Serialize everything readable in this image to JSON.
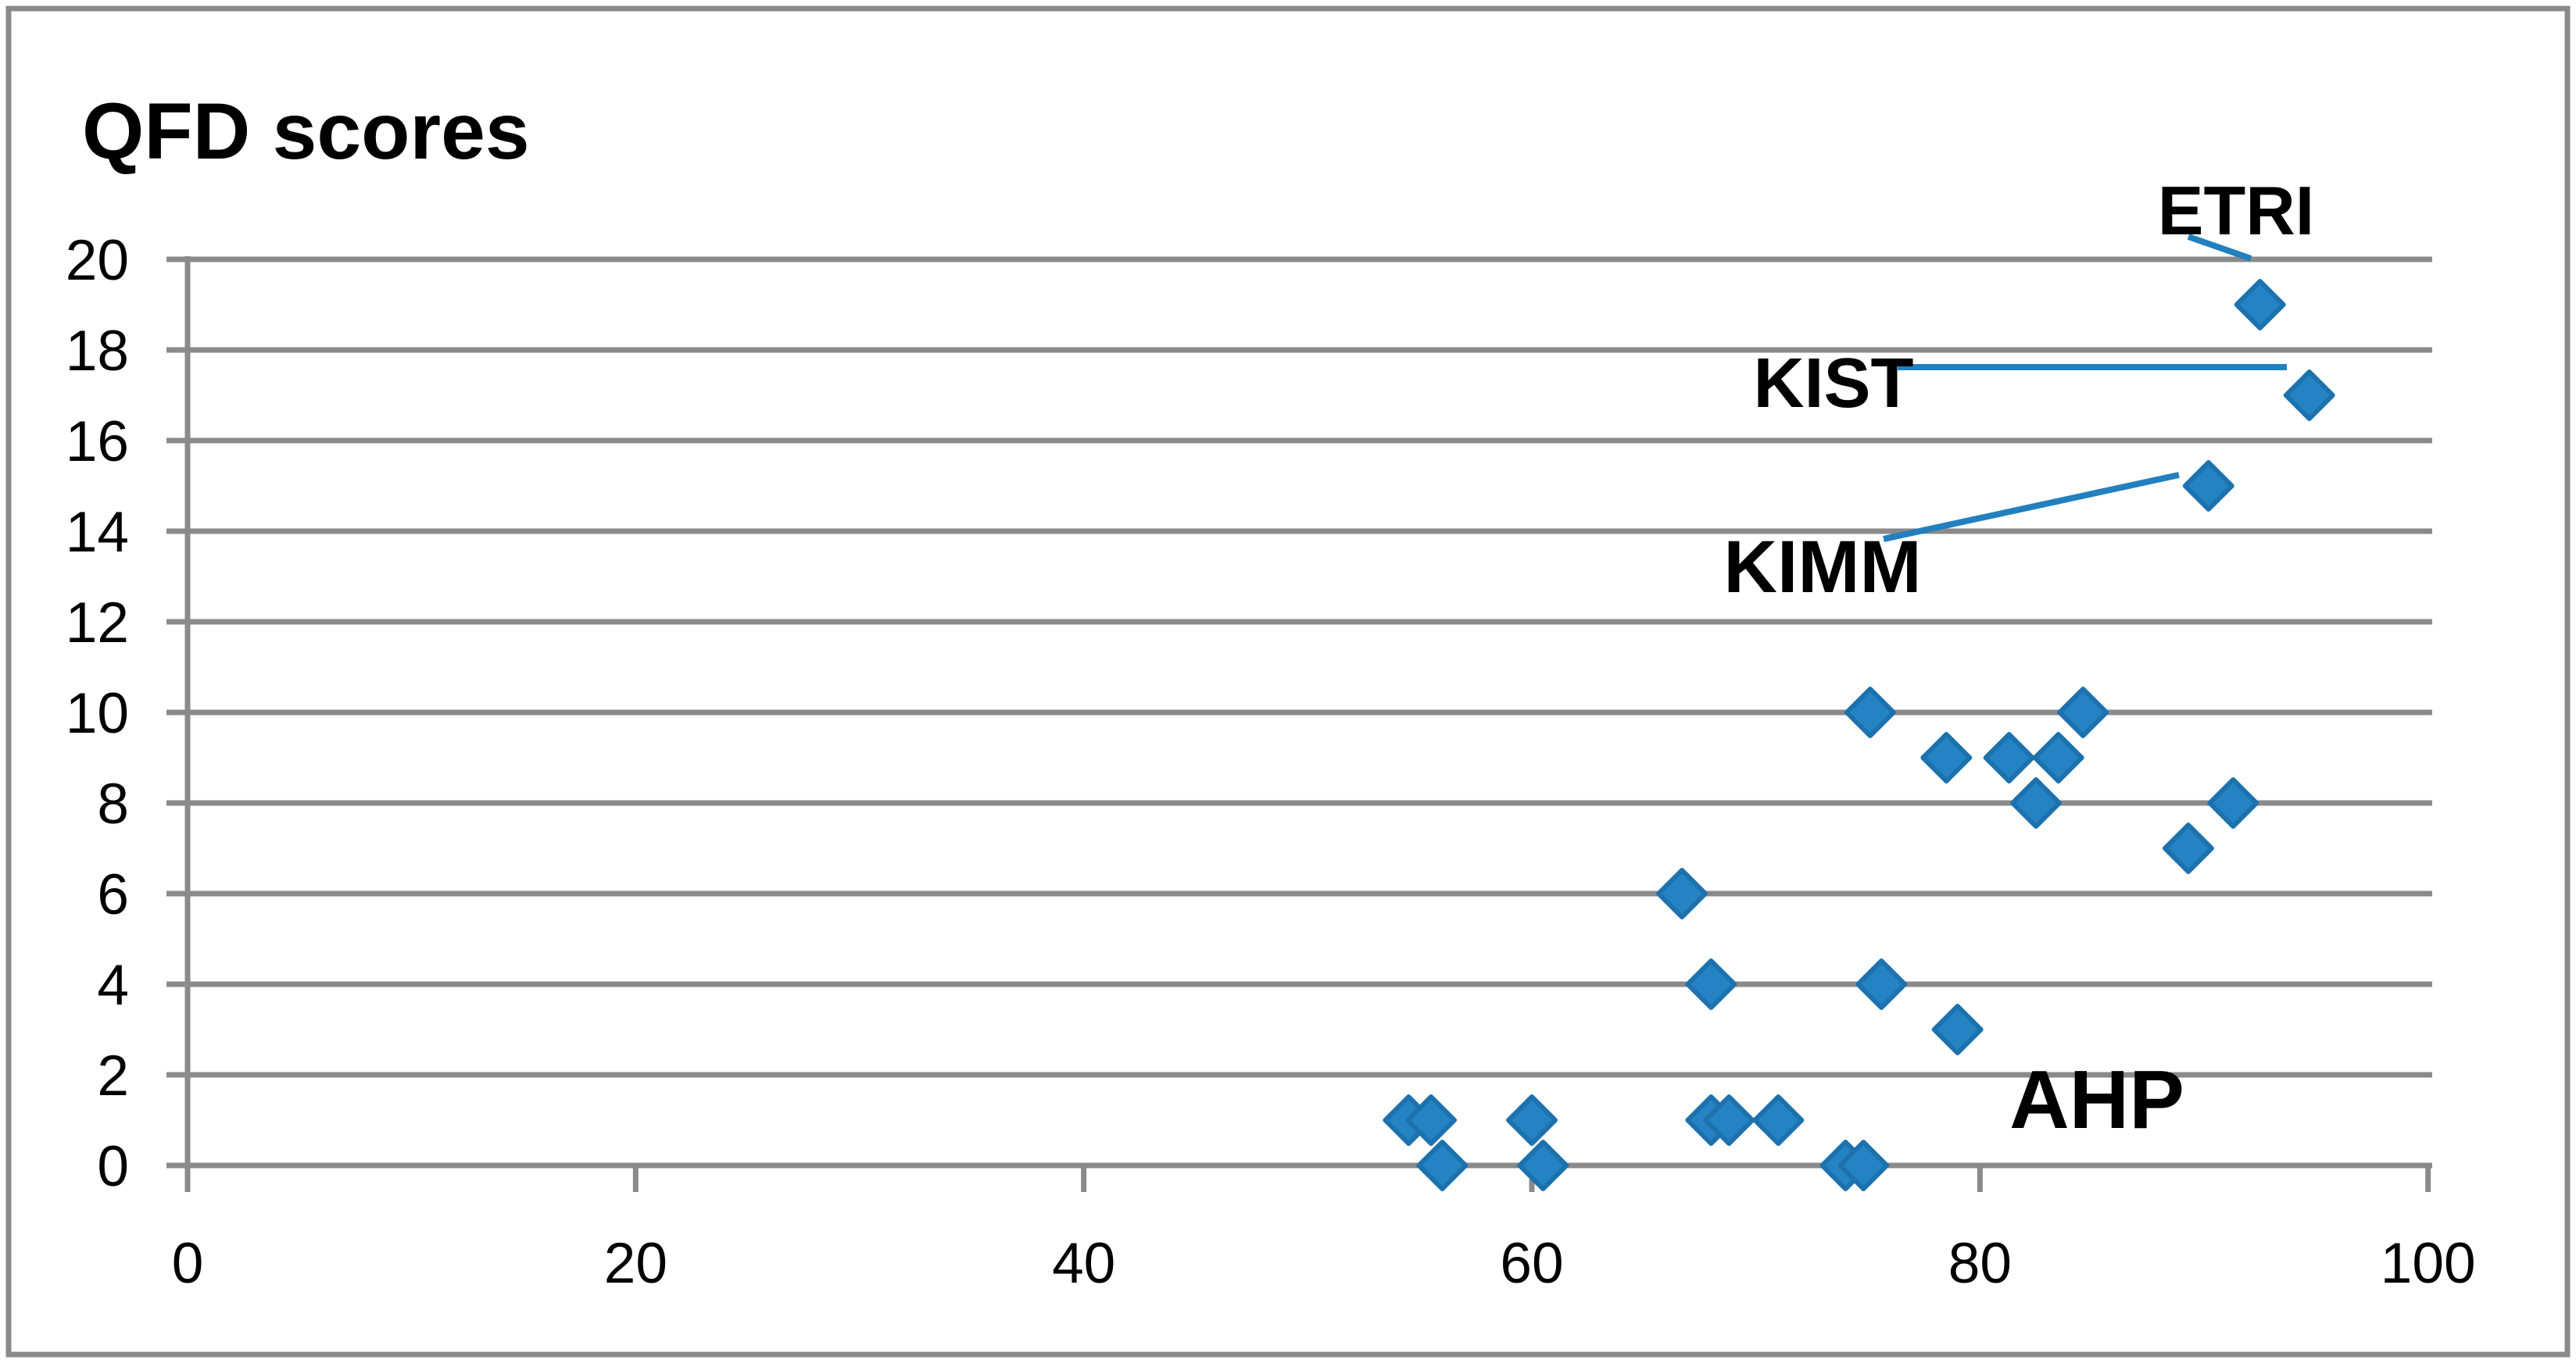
{
  "chart_data": {
    "type": "scatter",
    "title": "QFD scores",
    "xlabel": "",
    "ylabel": "",
    "xlim": [
      0,
      100
    ],
    "ylim": [
      0,
      20
    ],
    "x_ticks": [
      0,
      20,
      40,
      60,
      80,
      100
    ],
    "y_ticks": [
      0,
      2,
      4,
      6,
      8,
      10,
      12,
      14,
      16,
      18,
      20
    ],
    "grid": true,
    "legend": false,
    "marker": "diamond",
    "marker_color": "#2483C3",
    "marker_edge_color": "#1D72AE",
    "leader_line_color": "#2280BE",
    "grid_color": "#8A8A8A",
    "text_color": "#000000",
    "points": [
      {
        "x": 54.5,
        "y": 1
      },
      {
        "x": 55.5,
        "y": 1
      },
      {
        "x": 56,
        "y": 0
      },
      {
        "x": 60,
        "y": 1
      },
      {
        "x": 60.5,
        "y": 0
      },
      {
        "x": 66.7,
        "y": 6
      },
      {
        "x": 68,
        "y": 4
      },
      {
        "x": 68,
        "y": 1
      },
      {
        "x": 68.8,
        "y": 1
      },
      {
        "x": 71,
        "y": 1
      },
      {
        "x": 74,
        "y": 0
      },
      {
        "x": 74.8,
        "y": 0
      },
      {
        "x": 75.1,
        "y": 10
      },
      {
        "x": 75.6,
        "y": 4
      },
      {
        "x": 78.5,
        "y": 9
      },
      {
        "x": 79,
        "y": 3
      },
      {
        "x": 81.3,
        "y": 9
      },
      {
        "x": 82.5,
        "y": 8
      },
      {
        "x": 83.5,
        "y": 9
      },
      {
        "x": 84.6,
        "y": 10
      },
      {
        "x": 89.3,
        "y": 7
      },
      {
        "x": 91.3,
        "y": 8
      },
      {
        "x": 90.2,
        "y": 15
      },
      {
        "x": 92.5,
        "y": 19
      },
      {
        "x": 94.7,
        "y": 17
      }
    ],
    "annotations": [
      {
        "label": "ETRI",
        "x": 92.5,
        "y": 19
      },
      {
        "label": "KIST",
        "x": 94.7,
        "y": 17
      },
      {
        "label": "KIMM",
        "x": 90.2,
        "y": 15
      },
      {
        "label": "AHP"
      }
    ]
  }
}
